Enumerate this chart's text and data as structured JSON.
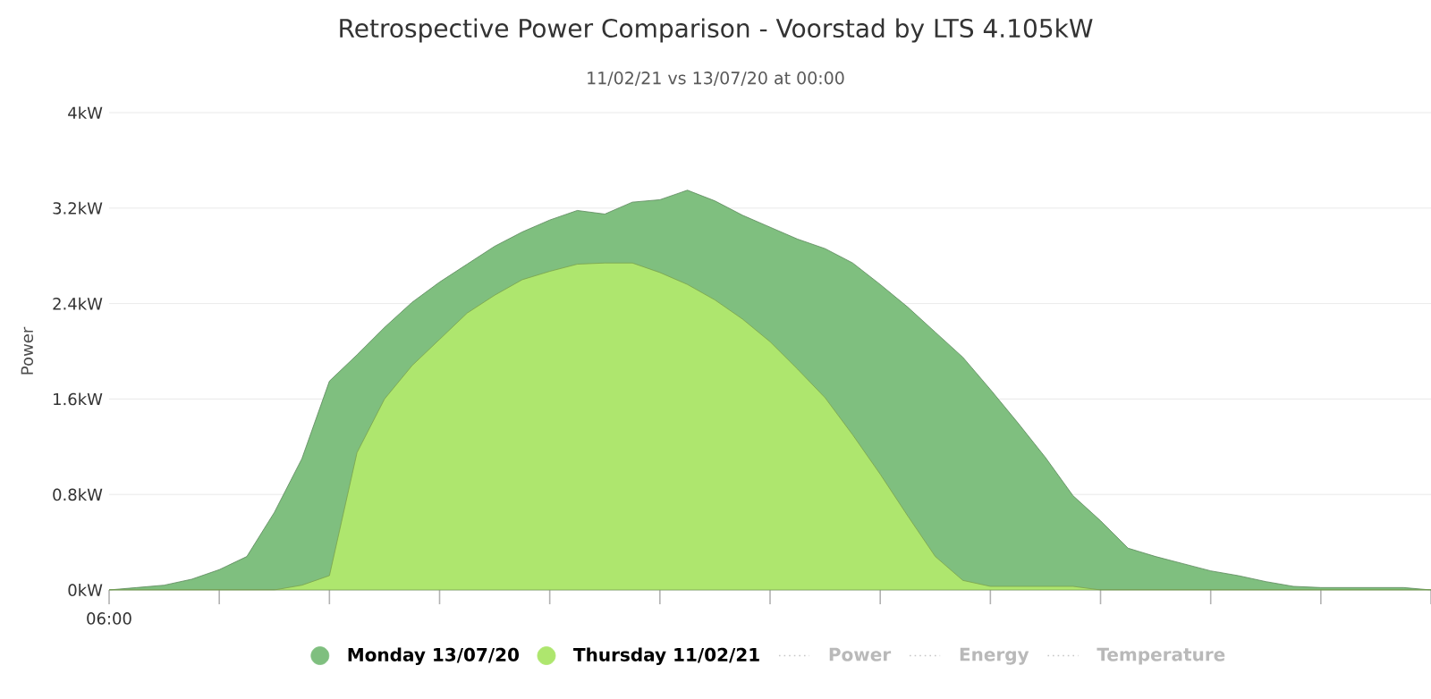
{
  "chart_data": {
    "type": "area",
    "title": "Retrospective Power Comparison - Voorstad by LTS 4.105kW",
    "subtitle": "11/02/21 vs 13/07/20 at 00:00",
    "ylabel": "Power",
    "categories": [
      null,
      null,
      null,
      null,
      null,
      null,
      null,
      null,
      null,
      null,
      null,
      null,
      null,
      null,
      null,
      null,
      null,
      null,
      null,
      null,
      null,
      null,
      null,
      null,
      null,
      null,
      null,
      null,
      null,
      null,
      null,
      null,
      null,
      null,
      null,
      null,
      null,
      null,
      null,
      null,
      null,
      null,
      null,
      null,
      null,
      null,
      null,
      null,
      null
    ],
    "ylim": [
      0,
      4
    ],
    "yticks": [
      {
        "value": 0,
        "label": "0kW"
      },
      {
        "value": 0.8,
        "label": "0.8kW"
      },
      {
        "value": 1.6,
        "label": "1.6kW"
      },
      {
        "value": 2.4,
        "label": "2.4kW"
      },
      {
        "value": 3.2,
        "label": "3.2kW"
      },
      {
        "value": 4,
        "label": "4kW"
      }
    ],
    "grid": "y",
    "legend": "bottom",
    "series": [
      {
        "name": "Monday 13/07/20",
        "color": "#7fbf7f",
        "values": [
          0,
          0.02,
          0.04,
          0.09,
          0.17,
          0.28,
          0.65,
          1.1,
          1.75,
          1.97,
          2.2,
          2.41,
          2.58,
          2.73,
          2.88,
          3.0,
          3.1,
          3.18,
          3.15,
          3.25,
          3.27,
          3.35,
          3.26,
          3.14,
          3.04,
          2.94,
          2.86,
          2.74,
          2.56,
          2.37,
          2.16,
          1.95,
          1.68,
          1.4,
          1.11,
          0.79,
          0.58,
          0.35,
          0.28,
          0.22,
          0.16,
          0.12,
          0.07,
          0.03,
          0.02,
          0.02,
          0.02,
          0.02,
          0
        ]
      },
      {
        "name": "Thursday 11/02/21",
        "color": "#aee66e",
        "values": [
          0,
          0,
          0,
          0,
          0,
          0,
          0,
          0.04,
          0.12,
          1.15,
          1.6,
          1.88,
          2.1,
          2.32,
          2.47,
          2.6,
          2.67,
          2.73,
          2.74,
          2.74,
          2.66,
          2.56,
          2.43,
          2.27,
          2.08,
          1.85,
          1.61,
          1.3,
          0.97,
          0.62,
          0.28,
          0.08,
          0.03,
          0.03,
          0.03,
          0.03,
          0,
          0,
          0,
          0,
          0,
          0,
          0,
          0,
          0,
          0,
          0,
          0,
          0
        ]
      }
    ],
    "annotations": [
      "06:00",
      "Power",
      "Energy",
      "Temperature"
    ]
  }
}
